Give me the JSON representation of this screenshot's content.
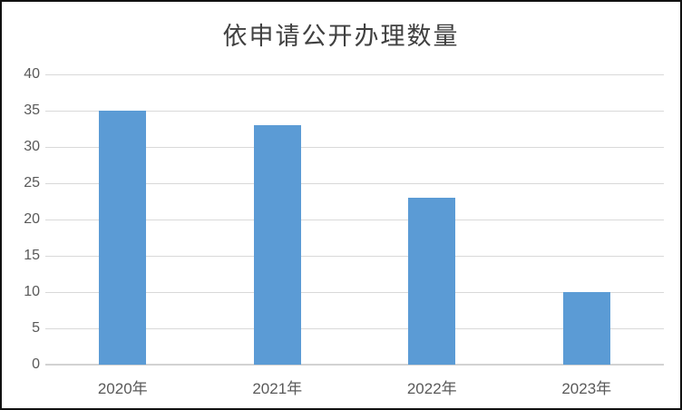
{
  "chart_data": {
    "type": "bar",
    "title": "依申请公开办理数量",
    "categories": [
      "2020年",
      "2021年",
      "2022年",
      "2023年"
    ],
    "values": [
      35,
      33,
      23,
      10
    ],
    "xlabel": "",
    "ylabel": "",
    "ylim": [
      0,
      40
    ],
    "ytick_step": 5,
    "grid": true,
    "legend": "none",
    "colors": {
      "bar": "#5b9bd5",
      "gridline": "#d9d9d9",
      "axis_line": "#d2d2d2",
      "tick_label": "#595959",
      "title": "#404040",
      "frame_border": "#111111",
      "background": "#ffffff"
    }
  }
}
